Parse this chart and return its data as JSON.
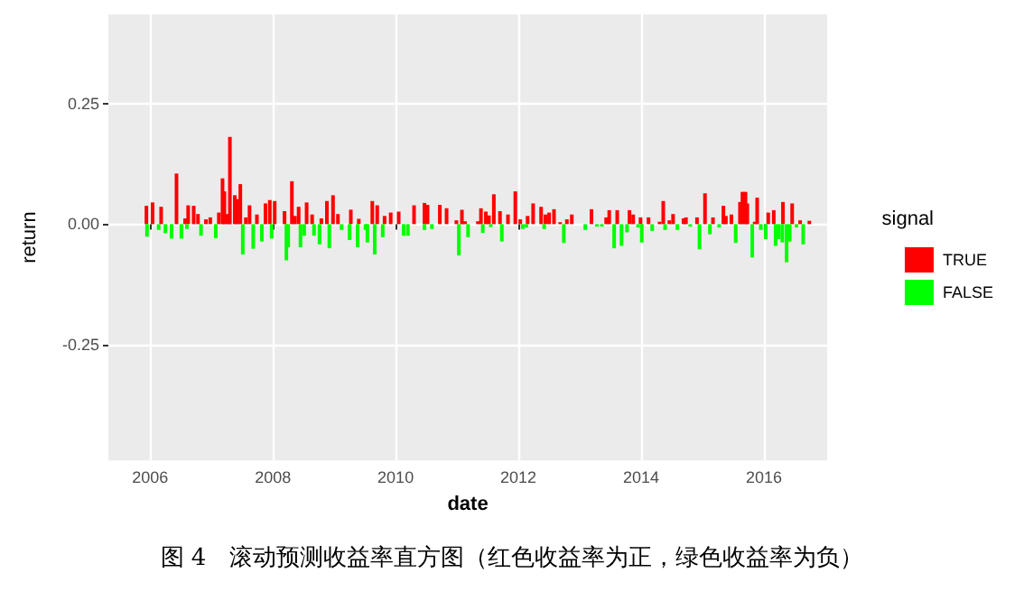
{
  "chart_data": {
    "type": "bar",
    "xlabel": "date",
    "ylabel": "return",
    "legend_title": "signal",
    "annotations": [
      "图 4　滚动预测收益率直方图（红色收益率为正，绿色收益率为负）"
    ],
    "xlim": [
      2005.32,
      2017.03
    ],
    "xticks": [
      2006,
      2008,
      2010,
      2012,
      2014,
      2016
    ],
    "ylim": [
      -0.49,
      0.435
    ],
    "yticks": [
      {
        "value": -0.25,
        "label": "-0.25"
      },
      {
        "value": 0,
        "label": "0.00"
      },
      {
        "value": 0.25,
        "label": "0.25"
      }
    ],
    "grid": true,
    "legend": "right",
    "series": [
      {
        "name": "TRUE",
        "color": "#ff0000",
        "x": [
          2005.94,
          2006.04,
          2006.18,
          2006.43,
          2006.57,
          2006.62,
          2006.71,
          2006.78,
          2006.91,
          2006.98,
          2007.12,
          2007.18,
          2007.21,
          2007.26,
          2007.3,
          2007.38,
          2007.42,
          2007.47,
          2007.56,
          2007.62,
          2007.74,
          2007.88,
          2007.95,
          2008.03,
          2008.19,
          2008.31,
          2008.36,
          2008.42,
          2008.55,
          2008.64,
          2008.79,
          2008.88,
          2008.98,
          2009.06,
          2009.27,
          2009.4,
          2009.62,
          2009.7,
          2009.82,
          2009.92,
          2010.05,
          2010.3,
          2010.47,
          2010.52,
          2010.72,
          2010.83,
          2010.99,
          2011.08,
          2011.13,
          2011.34,
          2011.39,
          2011.47,
          2011.52,
          2011.6,
          2011.7,
          2011.83,
          2011.95,
          2012.03,
          2012.15,
          2012.24,
          2012.37,
          2012.44,
          2012.5,
          2012.58,
          2012.68,
          2012.79,
          2012.87,
          2013.19,
          2013.43,
          2013.48,
          2013.61,
          2013.81,
          2013.87,
          2013.99,
          2014.12,
          2014.3,
          2014.36,
          2014.46,
          2014.52,
          2014.69,
          2014.73,
          2014.91,
          2015.04,
          2015.17,
          2015.34,
          2015.38,
          2015.47,
          2015.61,
          2015.65,
          2015.7,
          2015.73,
          2015.85,
          2015.89,
          2016.07,
          2016.16,
          2016.31,
          2016.46,
          2016.59,
          2016.74
        ],
        "values": [
          0.038,
          0.045,
          0.036,
          0.105,
          0.012,
          0.039,
          0.038,
          0.021,
          0.01,
          0.014,
          0.024,
          0.095,
          0.068,
          0.021,
          0.181,
          0.06,
          0.052,
          0.083,
          0.014,
          0.039,
          0.02,
          0.043,
          0.05,
          0.048,
          0.027,
          0.089,
          0.017,
          0.036,
          0.045,
          0.02,
          0.012,
          0.048,
          0.06,
          0.021,
          0.03,
          0.011,
          0.048,
          0.039,
          0.017,
          0.024,
          0.026,
          0.039,
          0.044,
          0.04,
          0.04,
          0.033,
          0.008,
          0.03,
          0.006,
          0.006,
          0.033,
          0.026,
          0.018,
          0.062,
          0.027,
          0.02,
          0.068,
          0.01,
          0.017,
          0.043,
          0.036,
          0.02,
          0.024,
          0.031,
          0.004,
          0.01,
          0.02,
          0.031,
          0.014,
          0.029,
          0.029,
          0.029,
          0.02,
          0.014,
          0.014,
          0.005,
          0.048,
          0.008,
          0.021,
          0.012,
          0.014,
          0.014,
          0.064,
          0.014,
          0.038,
          0.017,
          0.02,
          0.046,
          0.067,
          0.067,
          0.043,
          0.005,
          0.055,
          0.024,
          0.029,
          0.046,
          0.043,
          0.008,
          0.007
        ]
      },
      {
        "name": "FALSE",
        "color": "#00ff00",
        "x": [
          2005.95,
          2006.14,
          2006.25,
          2006.35,
          2006.51,
          2006.6,
          2006.83,
          2007.07,
          2007.51,
          2007.68,
          2007.82,
          2007.98,
          2008.22,
          2008.25,
          2008.45,
          2008.51,
          2008.67,
          2008.76,
          2008.92,
          2009.12,
          2009.25,
          2009.38,
          2009.51,
          2009.54,
          2009.66,
          2009.79,
          2010.13,
          2010.2,
          2010.47,
          2010.59,
          2011.03,
          2011.18,
          2011.42,
          2011.55,
          2011.73,
          2012.07,
          2012.13,
          2012.42,
          2012.74,
          2013.09,
          2013.28,
          2013.36,
          2013.56,
          2013.68,
          2013.77,
          2013.95,
          2014.01,
          2014.18,
          2014.39,
          2014.59,
          2014.8,
          2014.95,
          2015.12,
          2015.27,
          2015.54,
          2015.81,
          2015.95,
          2016.03,
          2016.19,
          2016.24,
          2016.3,
          2016.37,
          2016.42,
          2016.53,
          2016.64
        ],
        "values": [
          -0.026,
          -0.012,
          -0.019,
          -0.03,
          -0.03,
          -0.01,
          -0.024,
          -0.029,
          -0.063,
          -0.051,
          -0.036,
          -0.03,
          -0.075,
          -0.048,
          -0.048,
          -0.024,
          -0.024,
          -0.042,
          -0.05,
          -0.012,
          -0.033,
          -0.048,
          -0.012,
          -0.038,
          -0.063,
          -0.027,
          -0.024,
          -0.024,
          -0.012,
          -0.01,
          -0.065,
          -0.027,
          -0.018,
          -0.006,
          -0.036,
          -0.01,
          -0.007,
          -0.01,
          -0.039,
          -0.012,
          -0.005,
          -0.005,
          -0.05,
          -0.045,
          -0.017,
          -0.007,
          -0.038,
          -0.014,
          -0.012,
          -0.012,
          -0.005,
          -0.052,
          -0.021,
          -0.007,
          -0.039,
          -0.069,
          -0.012,
          -0.031,
          -0.045,
          -0.031,
          -0.038,
          -0.079,
          -0.036,
          -0.007,
          -0.042
        ]
      }
    ]
  }
}
